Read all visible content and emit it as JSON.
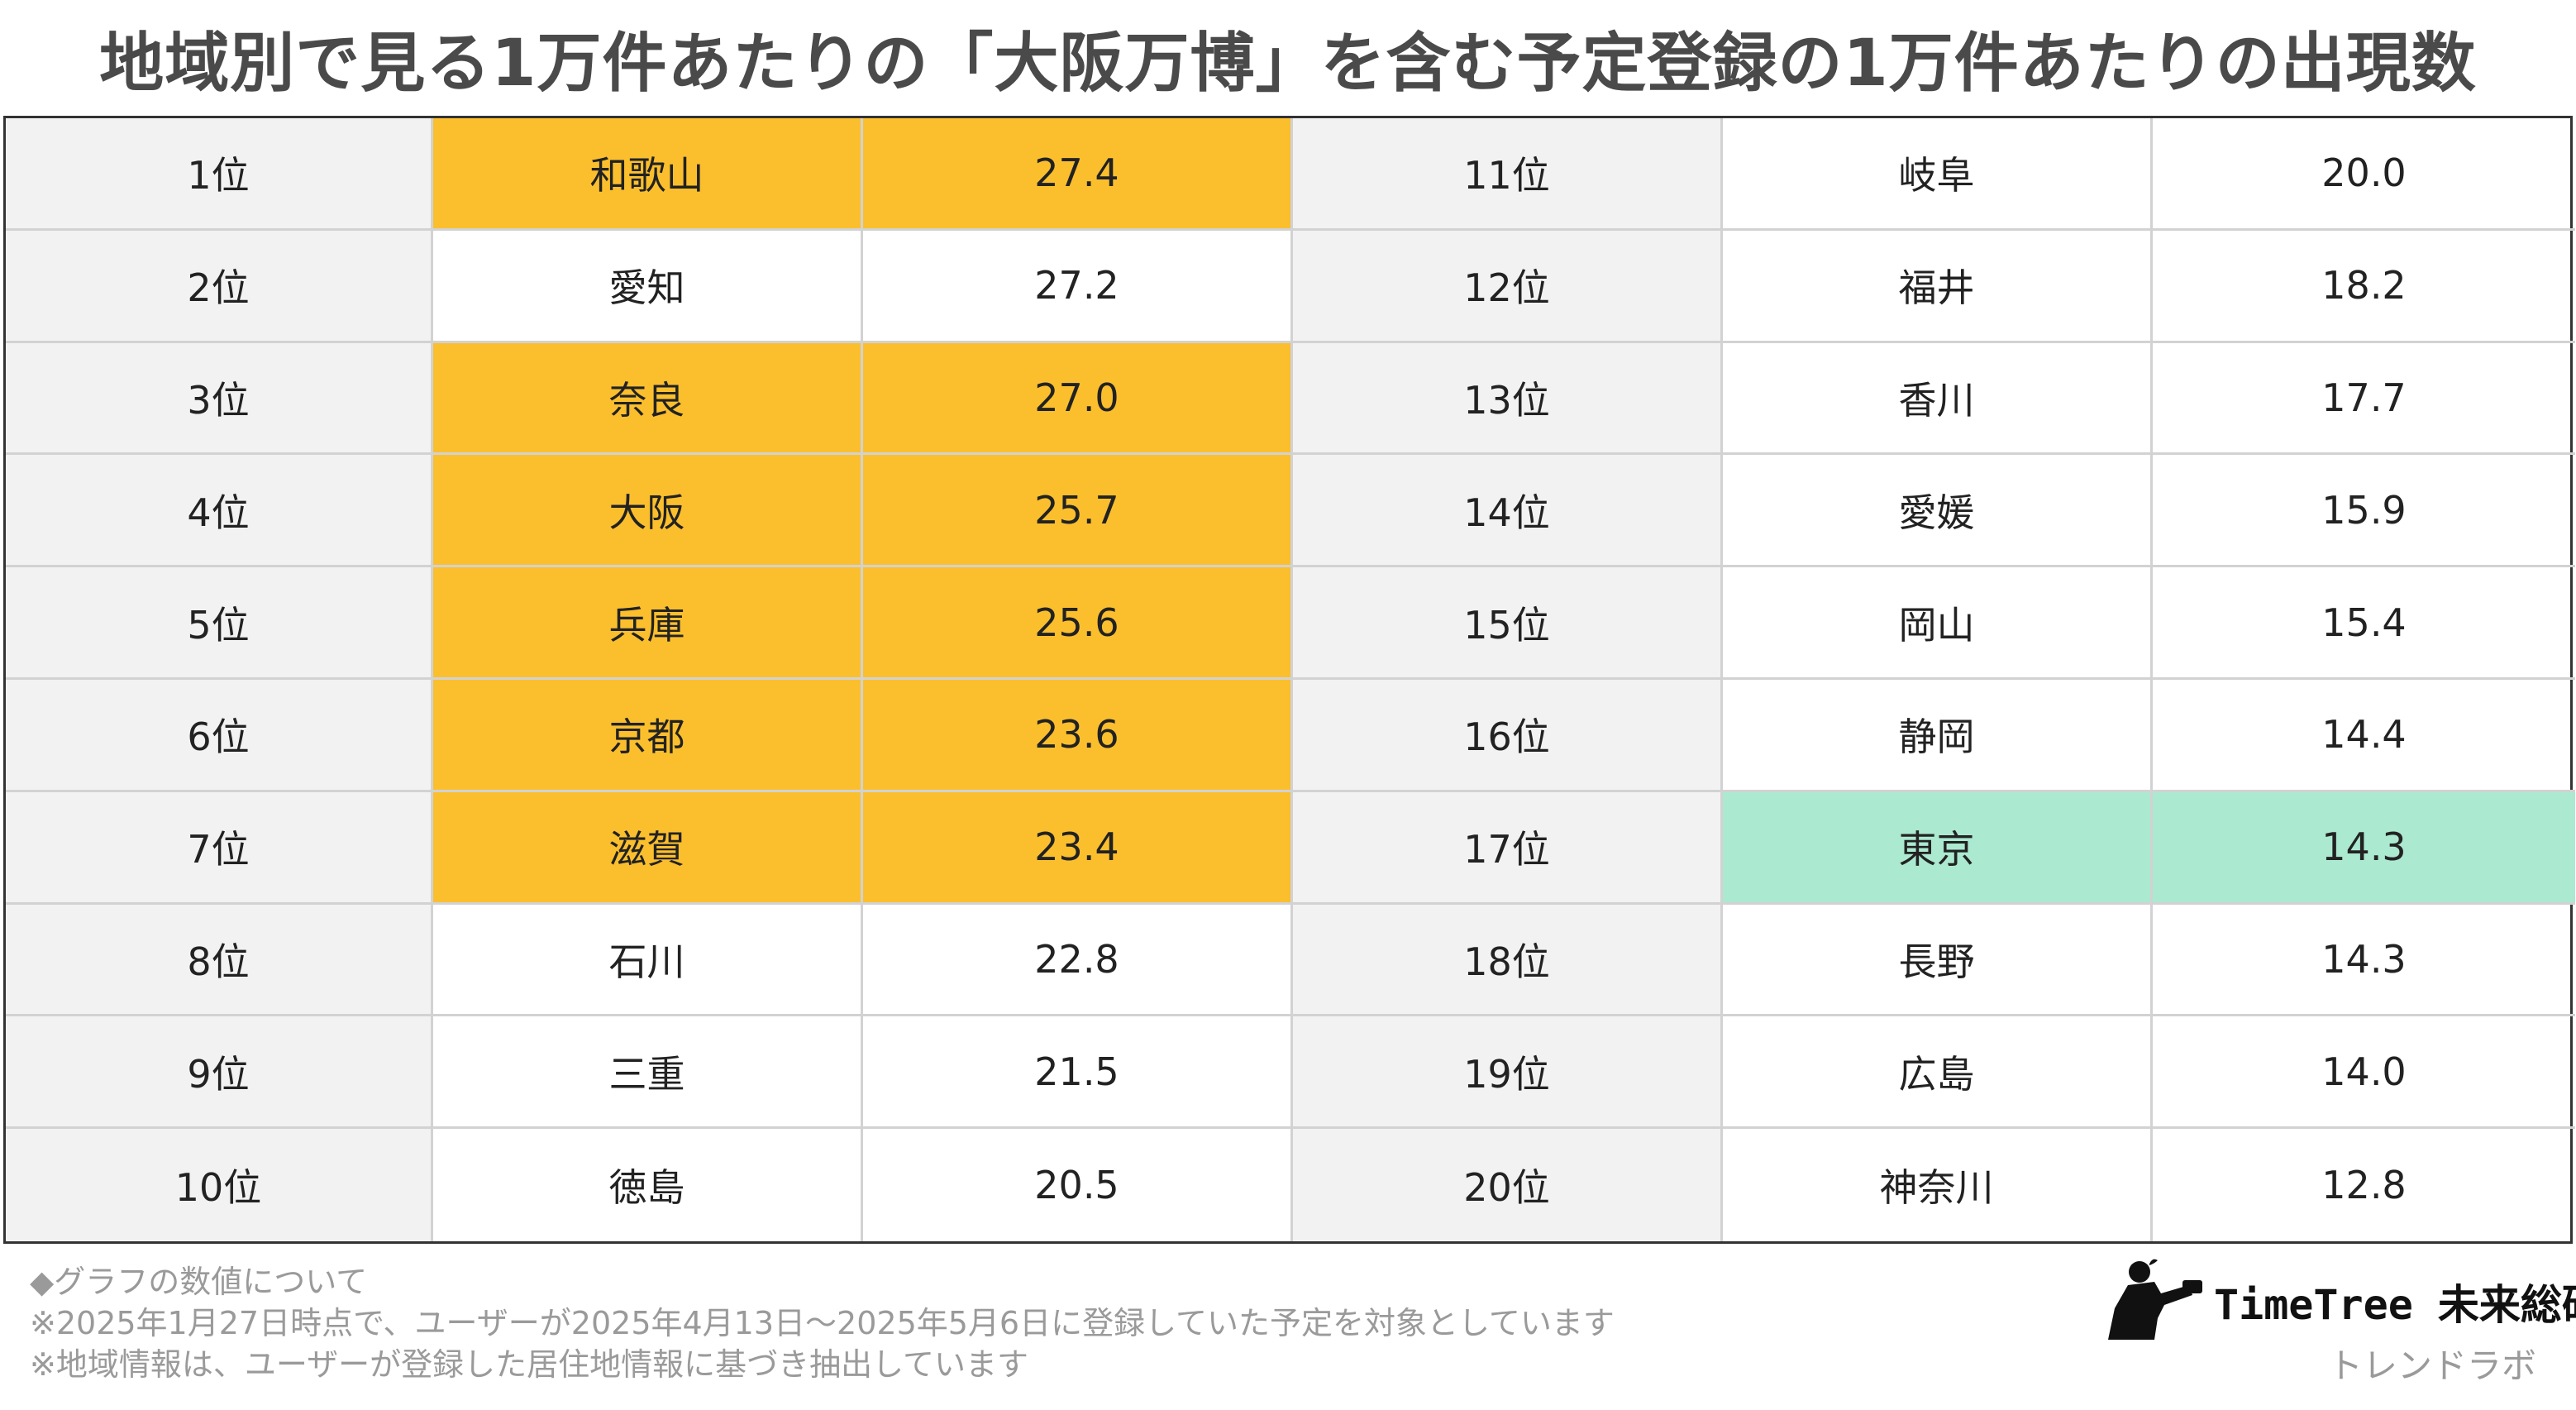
{
  "title": "地域別で見る1万件あたりの「大阪万博」を含む予定登録の1万件あたりの出現数",
  "chart_data": {
    "type": "table",
    "title": "地域別で見る1万件あたりの「大阪万博」を含む予定登録の1万件あたりの出現数",
    "highlight_colors": {
      "orange": "#fbbf2e",
      "green": "#abe9d1"
    },
    "rows": [
      {
        "rank": "1位",
        "region": "和歌山",
        "value": "27.4",
        "highlight": "orange"
      },
      {
        "rank": "2位",
        "region": "愛知",
        "value": "27.2",
        "highlight": ""
      },
      {
        "rank": "3位",
        "region": "奈良",
        "value": "27.0",
        "highlight": "orange"
      },
      {
        "rank": "4位",
        "region": "大阪",
        "value": "25.7",
        "highlight": "orange"
      },
      {
        "rank": "5位",
        "region": "兵庫",
        "value": "25.6",
        "highlight": "orange"
      },
      {
        "rank": "6位",
        "region": "京都",
        "value": "23.6",
        "highlight": "orange"
      },
      {
        "rank": "7位",
        "region": "滋賀",
        "value": "23.4",
        "highlight": "orange"
      },
      {
        "rank": "8位",
        "region": "石川",
        "value": "22.8",
        "highlight": ""
      },
      {
        "rank": "9位",
        "region": "三重",
        "value": "21.5",
        "highlight": ""
      },
      {
        "rank": "10位",
        "region": "徳島",
        "value": "20.5",
        "highlight": ""
      },
      {
        "rank": "11位",
        "region": "岐阜",
        "value": "20.0",
        "highlight": ""
      },
      {
        "rank": "12位",
        "region": "福井",
        "value": "18.2",
        "highlight": ""
      },
      {
        "rank": "13位",
        "region": "香川",
        "value": "17.7",
        "highlight": ""
      },
      {
        "rank": "14位",
        "region": "愛媛",
        "value": "15.9",
        "highlight": ""
      },
      {
        "rank": "15位",
        "region": "岡山",
        "value": "15.4",
        "highlight": ""
      },
      {
        "rank": "16位",
        "region": "静岡",
        "value": "14.4",
        "highlight": ""
      },
      {
        "rank": "17位",
        "region": "東京",
        "value": "14.3",
        "highlight": "green"
      },
      {
        "rank": "18位",
        "region": "長野",
        "value": "14.3",
        "highlight": ""
      },
      {
        "rank": "19位",
        "region": "広島",
        "value": "14.0",
        "highlight": ""
      },
      {
        "rank": "20位",
        "region": "神奈川",
        "value": "12.8",
        "highlight": ""
      }
    ]
  },
  "notes": [
    "◆グラフの数値について",
    "※2025年1月27日時点で、ユーザーが2025年4月13日〜2025年5月6日に登録していた予定を対象としています",
    "※地域情報は、ユーザーが登録した居住地情報に基づき抽出しています"
  ],
  "logo": {
    "name": "TimeTree 未来総研",
    "sub": "トレンドラボ"
  }
}
